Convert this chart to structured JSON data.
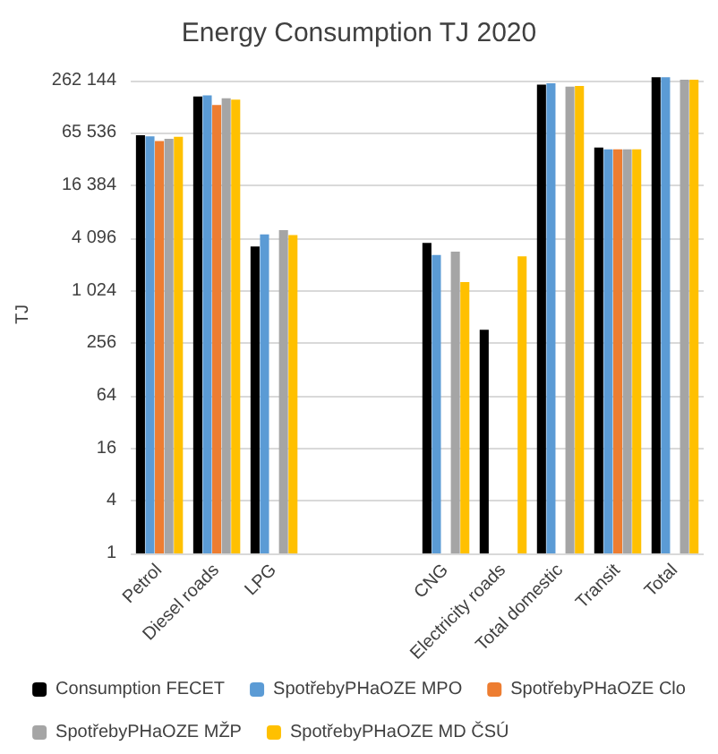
{
  "chart_data": {
    "type": "bar",
    "title": "Energy Consumption TJ 2020",
    "ylabel": "TJ",
    "categories": [
      "Petrol",
      "Diesel roads",
      "LPG",
      null,
      null,
      "CNG",
      "Electricity roads",
      "Total domestic",
      "Transit",
      "Total"
    ],
    "series": [
      {
        "name": "Consumption FECET",
        "color": "#000000",
        "values": [
          61500,
          171000,
          3270,
          null,
          null,
          3600,
          364,
          234000,
          44600,
          285000
        ]
      },
      {
        "name": "SpotřebyPHaOZE MPO",
        "color": "#5b9bd5",
        "values": [
          60000,
          176000,
          4500,
          null,
          null,
          2620,
          null,
          242000,
          42500,
          285000
        ]
      },
      {
        "name": "SpotřebyPHaOZE Clo",
        "color": "#ed7d31",
        "values": [
          53000,
          137000,
          null,
          null,
          null,
          null,
          null,
          null,
          42500,
          null
        ]
      },
      {
        "name": "SpotřebyPHaOZE MŽP",
        "color": "#a5a5a5",
        "values": [
          56000,
          163000,
          5040,
          null,
          null,
          2860,
          null,
          222000,
          42500,
          266000
        ]
      },
      {
        "name": "SpotřebyPHaOZE MD ČSÚ",
        "color": "#ffc000",
        "values": [
          59000,
          158000,
          4420,
          null,
          null,
          1280,
          2530,
          226000,
          42500,
          266000
        ]
      }
    ],
    "log": "y",
    "ylim": [
      1,
      300000
    ],
    "yticks": [
      1,
      4,
      16,
      64,
      256,
      {
        "value": 1024,
        "label": "1 024"
      },
      {
        "value": 4096,
        "label": "4 096"
      },
      {
        "value": 16384,
        "label": "16 384"
      },
      {
        "value": 65536,
        "label": "65 536"
      },
      {
        "value": 262144,
        "label": "262 144"
      }
    ],
    "grid": "y",
    "legend": "bottom"
  }
}
